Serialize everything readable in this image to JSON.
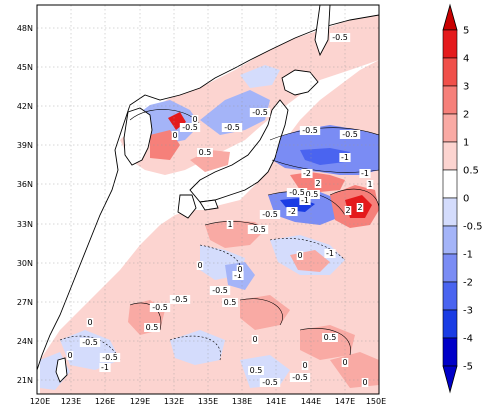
{
  "map": {
    "lat_labels": [
      "48N",
      "45N",
      "42N",
      "39N",
      "36N",
      "33N",
      "30N",
      "27N",
      "24N",
      "21N"
    ],
    "lon_labels": [
      "120E",
      "123E",
      "126E",
      "129E",
      "132E",
      "135E",
      "138E",
      "141E",
      "144E",
      "147E",
      "150E"
    ],
    "contour_labels": [
      "-0.5",
      "-0.5",
      "0",
      "-0.5",
      "0.5",
      "0",
      "-0.5",
      "-0.5",
      "-0.5",
      "-1",
      "-2",
      "-1",
      "2",
      "-0.5",
      "0.5",
      "1",
      "-1",
      "-2",
      "2",
      "2",
      "-0.5",
      "1",
      "-0.5",
      "-1",
      "0",
      "0",
      "-1",
      "-0.5",
      "-0.5",
      "0",
      "0",
      "-0.5",
      "0.5",
      "0.5",
      "-0.5",
      "0",
      "-1",
      "0.5",
      "0",
      "0.5",
      "0",
      "-0.5",
      "-0.5",
      "0",
      "-0.5",
      "0"
    ]
  },
  "colorbar": {
    "levels": [
      "5",
      "4",
      "3",
      "2",
      "1",
      "0.5",
      "0",
      "-0.5",
      "-1",
      "-2",
      "-3",
      "-4",
      "-5"
    ],
    "colors": [
      "#c80000",
      "#e41a1c",
      "#f0504a",
      "#f6807a",
      "#f9aaa4",
      "#fcd4d0",
      "#ffffff",
      "#d4dcfc",
      "#a4b4f8",
      "#7a8cf4",
      "#4a64f0",
      "#1a3ce4",
      "#0000c8"
    ]
  }
}
